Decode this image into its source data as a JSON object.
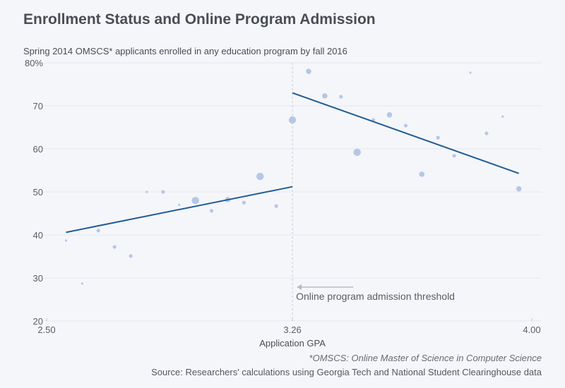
{
  "title": "Enrollment Status and Online Program Admission",
  "subtitle": "Spring 2014 OMSCS* applicants enrolled in any education program by fall 2016",
  "footnote": "*OMSCS: Online Master of Science in Computer Science",
  "source": "Source: Researchers' calculations using Georgia Tech and National Student Clearinghouse data",
  "colors": {
    "point": "#b6c7e6",
    "line": "#1f5c96",
    "grid": "#e6e8ee",
    "threshold": "#c8cbd3",
    "arrow": "#b8bbc3"
  },
  "chart_data": {
    "type": "scatter",
    "title": "Enrollment Status and Online Program Admission",
    "subtitle": "Spring 2014 OMSCS* applicants enrolled in any education program by fall 2016",
    "xlabel": "Application GPA",
    "ylabel": "",
    "xlim": [
      2.5,
      4.0
    ],
    "ylim": [
      20,
      80
    ],
    "xticks": [
      {
        "value": 2.5,
        "label": "2.50"
      },
      {
        "value": 3.26,
        "label": "3.26"
      },
      {
        "value": 4.0,
        "label": "4.00"
      }
    ],
    "yticks": [
      {
        "value": 80,
        "label": "80%"
      },
      {
        "value": 70,
        "label": "70"
      },
      {
        "value": 60,
        "label": "60"
      },
      {
        "value": 50,
        "label": "50"
      },
      {
        "value": 40,
        "label": "40"
      },
      {
        "value": 30,
        "label": "30"
      },
      {
        "value": 20,
        "label": "20"
      }
    ],
    "grid": true,
    "threshold": {
      "x": 3.26,
      "label": "Online program admission threshold"
    },
    "points": [
      {
        "x": 2.56,
        "y": 38.7,
        "size": 1
      },
      {
        "x": 2.61,
        "y": 28.7,
        "size": 1
      },
      {
        "x": 2.66,
        "y": 41.0,
        "size": 2
      },
      {
        "x": 2.71,
        "y": 37.2,
        "size": 2
      },
      {
        "x": 2.76,
        "y": 35.1,
        "size": 2
      },
      {
        "x": 2.81,
        "y": 50.0,
        "size": 1
      },
      {
        "x": 2.86,
        "y": 50.0,
        "size": 2
      },
      {
        "x": 2.91,
        "y": 47.0,
        "size": 1
      },
      {
        "x": 2.96,
        "y": 48.0,
        "size": 4
      },
      {
        "x": 3.01,
        "y": 45.6,
        "size": 2
      },
      {
        "x": 3.06,
        "y": 48.2,
        "size": 3
      },
      {
        "x": 3.11,
        "y": 47.5,
        "size": 2
      },
      {
        "x": 3.16,
        "y": 53.6,
        "size": 4
      },
      {
        "x": 3.21,
        "y": 46.7,
        "size": 2
      },
      {
        "x": 3.26,
        "y": 66.7,
        "size": 4
      },
      {
        "x": 3.31,
        "y": 78.0,
        "size": 3
      },
      {
        "x": 3.36,
        "y": 72.3,
        "size": 3
      },
      {
        "x": 3.41,
        "y": 72.1,
        "size": 2
      },
      {
        "x": 3.46,
        "y": 59.2,
        "size": 4
      },
      {
        "x": 3.51,
        "y": 66.7,
        "size": 2
      },
      {
        "x": 3.56,
        "y": 67.9,
        "size": 3
      },
      {
        "x": 3.61,
        "y": 65.4,
        "size": 2
      },
      {
        "x": 3.66,
        "y": 54.1,
        "size": 3
      },
      {
        "x": 3.71,
        "y": 62.6,
        "size": 2
      },
      {
        "x": 3.76,
        "y": 58.4,
        "size": 2
      },
      {
        "x": 3.81,
        "y": 77.7,
        "size": 1
      },
      {
        "x": 3.86,
        "y": 63.6,
        "size": 2
      },
      {
        "x": 3.91,
        "y": 67.5,
        "size": 1
      },
      {
        "x": 3.96,
        "y": 50.7,
        "size": 3
      }
    ],
    "fit_lines": [
      {
        "name": "below-threshold",
        "x": [
          2.56,
          3.26
        ],
        "y": [
          40.6,
          51.2
        ]
      },
      {
        "name": "above-threshold",
        "x": [
          3.26,
          3.96
        ],
        "y": [
          73.0,
          54.3
        ]
      }
    ]
  }
}
